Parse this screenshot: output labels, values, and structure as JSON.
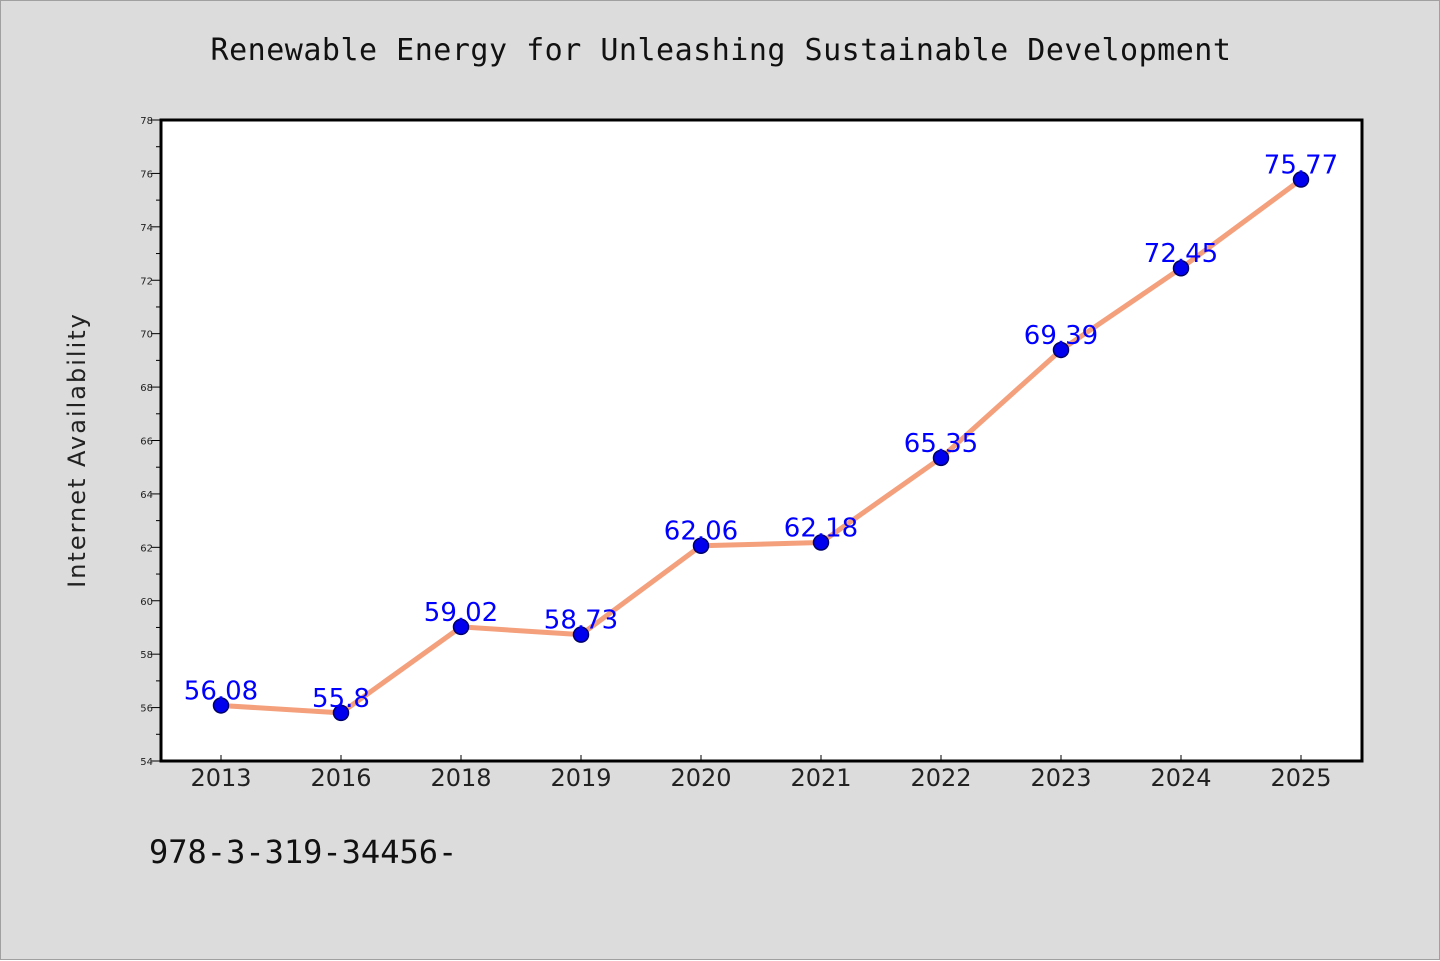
{
  "chart_data": {
    "type": "line",
    "title": "Renewable Energy for Unleashing Sustainable Development",
    "xlabel": "",
    "ylabel": "Internet Availability",
    "categories": [
      "2013",
      "2016",
      "2018",
      "2019",
      "2020",
      "2021",
      "2022",
      "2023",
      "2024",
      "2025"
    ],
    "series": [
      {
        "values": [
          56.08,
          55.8,
          59.02,
          58.73,
          62.06,
          62.18,
          65.35,
          69.39,
          72.45,
          75.77
        ],
        "labels": [
          "56.08",
          "55.8",
          "59.02",
          "58.73",
          "62.06",
          "62.18",
          "65.35",
          "69.39",
          "72.45",
          "75.77"
        ]
      }
    ],
    "ylim": [
      54,
      78
    ],
    "yticks": [
      54,
      56,
      58,
      60,
      62,
      64,
      66,
      68,
      70,
      72,
      74,
      76,
      78
    ],
    "grid": false,
    "legend": "none",
    "colors": {
      "line": "#f4a07c",
      "marker": "#0000ee",
      "marker_edge": "#000066",
      "data_label": "#0000ff",
      "plot_background": "#ffffff",
      "figure_background": "#dcdcdc"
    }
  },
  "footer": {
    "text": "978-3-319-34456-"
  }
}
